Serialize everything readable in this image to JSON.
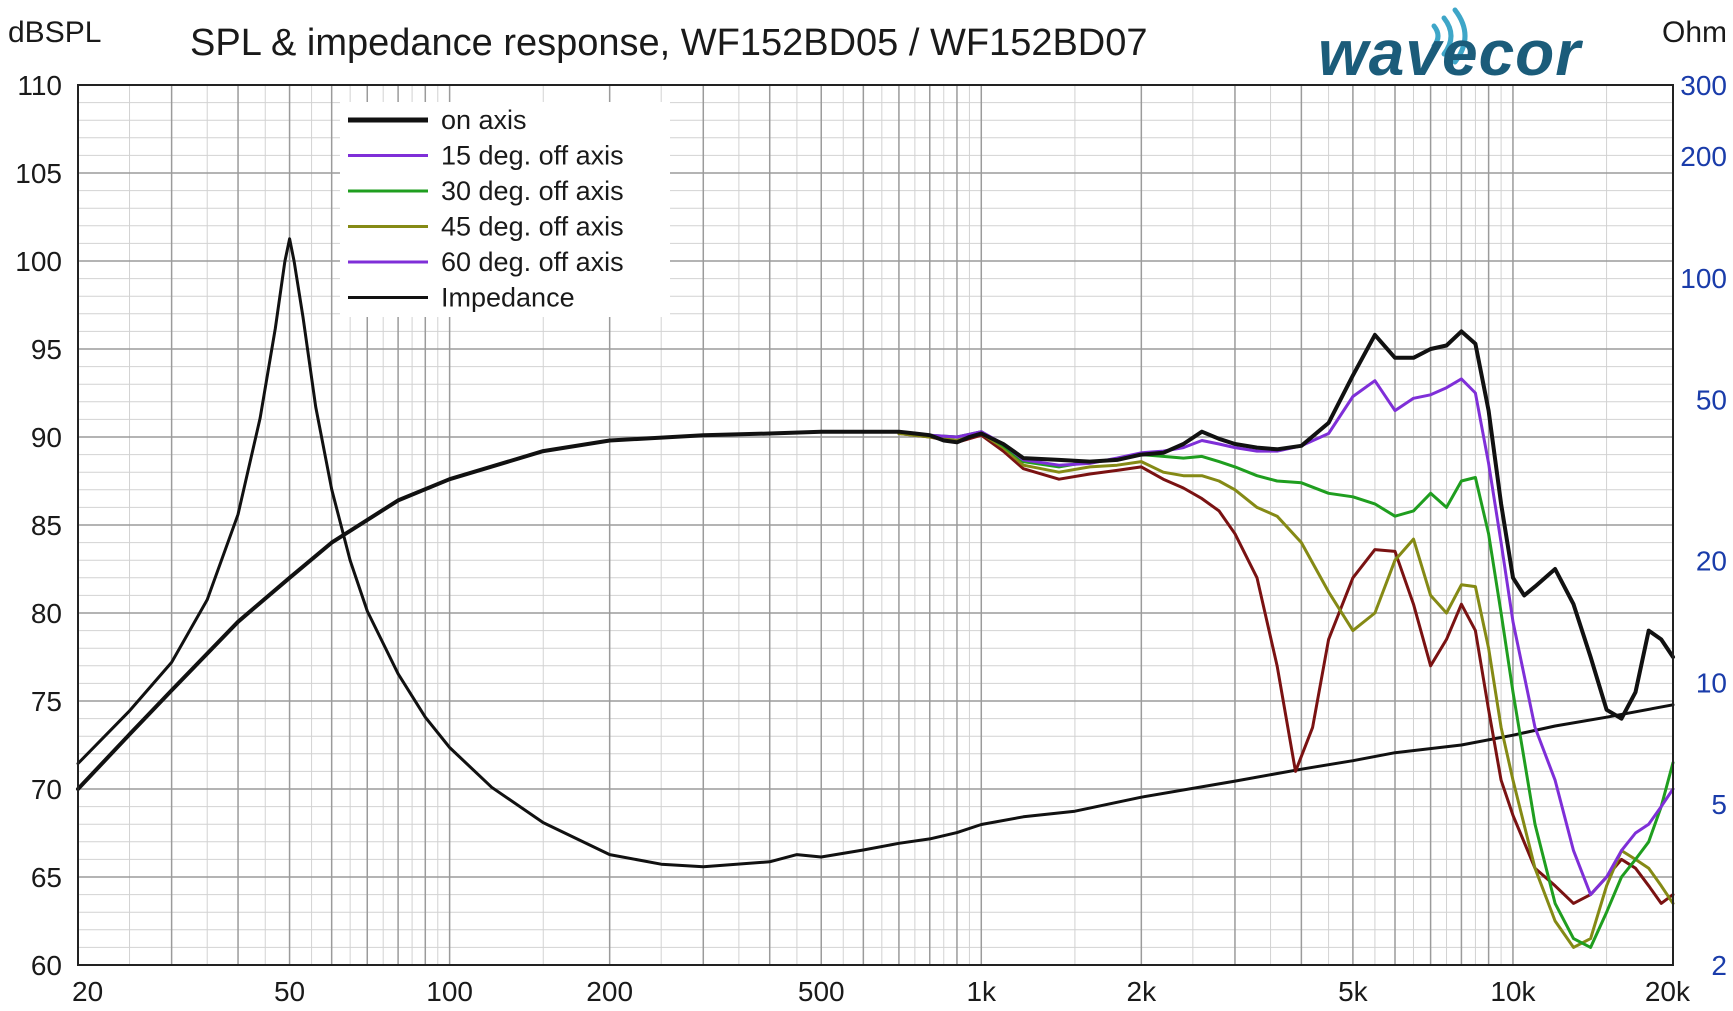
{
  "chart_data": {
    "type": "line",
    "title": "SPL & impedance response, WF152BD05 / WF152BD07",
    "ylabel": "dBSPL",
    "y2label": "Ohm",
    "brand": "wavecor",
    "x_scale": "log",
    "xlim": [
      20,
      20000
    ],
    "ylim": [
      60,
      110
    ],
    "y2lim": [
      2,
      300
    ],
    "y2_scale": "log",
    "grid": true,
    "legend_position": "top-left",
    "x_ticks": [
      {
        "value": 20,
        "label": "20"
      },
      {
        "value": 50,
        "label": "50"
      },
      {
        "value": 100,
        "label": "100"
      },
      {
        "value": 200,
        "label": "200"
      },
      {
        "value": 500,
        "label": "500"
      },
      {
        "value": 1000,
        "label": "1k"
      },
      {
        "value": 2000,
        "label": "2k"
      },
      {
        "value": 5000,
        "label": "5k"
      },
      {
        "value": 10000,
        "label": "10k"
      },
      {
        "value": 20000,
        "label": "20k"
      }
    ],
    "y_ticks": [
      {
        "value": 110,
        "label": "110"
      },
      {
        "value": 105,
        "label": "105"
      },
      {
        "value": 100,
        "label": "100"
      },
      {
        "value": 95,
        "label": "95"
      },
      {
        "value": 90,
        "label": "90"
      },
      {
        "value": 85,
        "label": "85"
      },
      {
        "value": 80,
        "label": "80"
      },
      {
        "value": 75,
        "label": "75"
      },
      {
        "value": 70,
        "label": "70"
      },
      {
        "value": 65,
        "label": "65"
      },
      {
        "value": 60,
        "label": "60"
      }
    ],
    "y2_ticks": [
      {
        "value": 300,
        "label": "300"
      },
      {
        "value": 200,
        "label": "200"
      },
      {
        "value": 100,
        "label": "100"
      },
      {
        "value": 50,
        "label": "50"
      },
      {
        "value": 20,
        "label": "20"
      },
      {
        "value": 10,
        "label": "10"
      },
      {
        "value": 5,
        "label": "5"
      },
      {
        "value": 2,
        "label": "2"
      }
    ],
    "series": [
      {
        "name": "on axis",
        "color": "#111111",
        "axis": "left",
        "legend_swatch_width": 5,
        "x": [
          20,
          25,
          30,
          40,
          50,
          60,
          80,
          100,
          150,
          200,
          300,
          400,
          500,
          600,
          700,
          750,
          800,
          850,
          900,
          950,
          1000,
          1100,
          1200,
          1400,
          1600,
          1800,
          2000,
          2200,
          2400,
          2600,
          2800,
          3000,
          3300,
          3600,
          4000,
          4500,
          5000,
          5500,
          6000,
          6500,
          7000,
          7500,
          8000,
          8500,
          9000,
          9500,
          10000,
          10500,
          11000,
          12000,
          13000,
          14000,
          15000,
          16000,
          17000,
          18000,
          19000,
          20000
        ],
        "y": [
          70.0,
          73.1,
          75.6,
          79.5,
          82.0,
          84.0,
          86.4,
          87.6,
          89.2,
          89.8,
          90.1,
          90.2,
          90.3,
          90.3,
          90.3,
          90.2,
          90.1,
          89.8,
          89.7,
          90.0,
          90.2,
          89.6,
          88.8,
          88.7,
          88.6,
          88.7,
          89.0,
          89.1,
          89.6,
          90.3,
          89.9,
          89.6,
          89.4,
          89.3,
          89.5,
          90.8,
          93.5,
          95.8,
          94.5,
          94.5,
          95.0,
          95.2,
          96.0,
          95.3,
          91.5,
          86.2,
          82.0,
          81.0,
          81.5,
          82.5,
          80.5,
          77.5,
          74.5,
          74.0,
          75.5,
          79.0,
          78.5,
          77.5
        ]
      },
      {
        "name": "15 deg. off axis",
        "color": "#7f2fd8",
        "axis": "left",
        "legend_swatch_width": 3,
        "x": [
          700,
          800,
          900,
          1000,
          1100,
          1200,
          1400,
          1600,
          1800,
          2000,
          2200,
          2400,
          2600,
          2800,
          3000,
          3300,
          3600,
          4000,
          4500,
          5000,
          5500,
          6000,
          6500,
          7000,
          7500,
          8000,
          8500,
          9000,
          9500,
          10000,
          11000,
          12000,
          13000,
          14000,
          15000,
          16000,
          17000,
          18000,
          19000,
          20000
        ],
        "y": [
          90.3,
          90.1,
          90.0,
          90.3,
          89.6,
          88.7,
          88.4,
          88.5,
          88.8,
          89.1,
          89.2,
          89.4,
          89.8,
          89.6,
          89.4,
          89.2,
          89.2,
          89.5,
          90.2,
          92.3,
          93.2,
          91.5,
          92.2,
          92.4,
          92.8,
          93.3,
          92.5,
          88.5,
          84.0,
          79.5,
          73.5,
          70.5,
          66.5,
          64.0,
          65.0,
          66.5,
          67.5,
          68.0,
          69.0,
          70.0
        ]
      },
      {
        "name": "30 deg. off axis",
        "color": "#1f9e1f",
        "axis": "left",
        "legend_swatch_width": 3,
        "x": [
          700,
          800,
          900,
          1000,
          1100,
          1200,
          1400,
          1600,
          1800,
          2000,
          2200,
          2400,
          2600,
          2800,
          3000,
          3300,
          3600,
          4000,
          4500,
          5000,
          5500,
          6000,
          6500,
          7000,
          7500,
          8000,
          8500,
          9000,
          9500,
          10000,
          11000,
          12000,
          13000,
          14000,
          15000,
          16000,
          17000,
          18000,
          19000,
          20000
        ],
        "y": [
          90.3,
          90.1,
          90.0,
          90.3,
          89.5,
          88.6,
          88.3,
          88.6,
          88.7,
          89.0,
          88.9,
          88.8,
          88.9,
          88.6,
          88.3,
          87.8,
          87.5,
          87.4,
          86.8,
          86.6,
          86.2,
          85.5,
          85.8,
          86.8,
          86.0,
          87.5,
          87.7,
          84.5,
          80.0,
          75.5,
          68.0,
          63.5,
          61.5,
          61.0,
          63.0,
          65.0,
          66.0,
          67.0,
          69.0,
          71.5
        ]
      },
      {
        "name": "45 deg. off axis",
        "color": "#858a15",
        "axis": "left",
        "legend_swatch_width": 3,
        "x": [
          700,
          800,
          900,
          1000,
          1100,
          1200,
          1400,
          1600,
          1800,
          2000,
          2200,
          2400,
          2600,
          2800,
          3000,
          3300,
          3600,
          4000,
          4500,
          5000,
          5500,
          6000,
          6500,
          7000,
          7500,
          8000,
          8500,
          9000,
          9500,
          10000,
          11000,
          12000,
          13000,
          14000,
          15000,
          16000,
          17000,
          18000,
          19000,
          20000
        ],
        "y": [
          90.2,
          90.0,
          89.8,
          90.2,
          89.4,
          88.4,
          88.0,
          88.3,
          88.4,
          88.6,
          88.0,
          87.8,
          87.8,
          87.5,
          87.0,
          86.0,
          85.5,
          84.0,
          81.2,
          79.0,
          80.0,
          83.0,
          84.2,
          81.0,
          80.0,
          81.6,
          81.5,
          78.0,
          73.5,
          70.5,
          65.5,
          62.5,
          61.0,
          61.5,
          64.5,
          66.5,
          66.0,
          65.5,
          64.5,
          63.5
        ]
      },
      {
        "name": "60 deg. off axis",
        "color": "#7a1212",
        "axis": "left",
        "legend_swatch_width": 3,
        "legend_color": "#7f2fd8",
        "x": [
          700,
          800,
          900,
          1000,
          1100,
          1200,
          1400,
          1600,
          1800,
          2000,
          2200,
          2400,
          2600,
          2800,
          3000,
          3300,
          3600,
          3900,
          4200,
          4500,
          5000,
          5500,
          6000,
          6500,
          7000,
          7500,
          8000,
          8500,
          9000,
          9500,
          10000,
          11000,
          12000,
          13000,
          14000,
          15000,
          16000,
          17000,
          18000,
          19000,
          20000
        ],
        "y": [
          90.2,
          90.0,
          89.7,
          90.1,
          89.2,
          88.2,
          87.6,
          87.9,
          88.1,
          88.3,
          87.6,
          87.1,
          86.5,
          85.8,
          84.5,
          82.0,
          77.0,
          71.0,
          73.5,
          78.5,
          82.0,
          83.6,
          83.5,
          80.5,
          77.0,
          78.5,
          80.5,
          79.0,
          74.5,
          70.5,
          68.5,
          65.5,
          64.5,
          63.5,
          64.0,
          65.0,
          66.0,
          65.5,
          64.5,
          63.5,
          64.0
        ]
      },
      {
        "name": "Impedance",
        "color": "#111111",
        "axis": "right",
        "legend_swatch_width": 3,
        "x": [
          20,
          25,
          30,
          35,
          40,
          44,
          47,
          49,
          50,
          51,
          53,
          56,
          60,
          65,
          70,
          80,
          90,
          100,
          120,
          150,
          200,
          250,
          300,
          400,
          450,
          500,
          600,
          700,
          800,
          900,
          1000,
          1200,
          1500,
          2000,
          3000,
          4000,
          5000,
          6000,
          8000,
          10000,
          12000,
          15000,
          20000
        ],
        "y": [
          6.3,
          8.5,
          11.2,
          16.0,
          26.0,
          45.0,
          75.0,
          110.0,
          125.0,
          110.0,
          80.0,
          48.0,
          30.0,
          20.0,
          15.0,
          10.5,
          8.2,
          6.9,
          5.5,
          4.5,
          3.75,
          3.55,
          3.5,
          3.6,
          3.75,
          3.7,
          3.85,
          4.0,
          4.1,
          4.25,
          4.45,
          4.65,
          4.8,
          5.2,
          5.7,
          6.1,
          6.4,
          6.7,
          7.0,
          7.4,
          7.8,
          8.2,
          8.8
        ]
      }
    ]
  }
}
